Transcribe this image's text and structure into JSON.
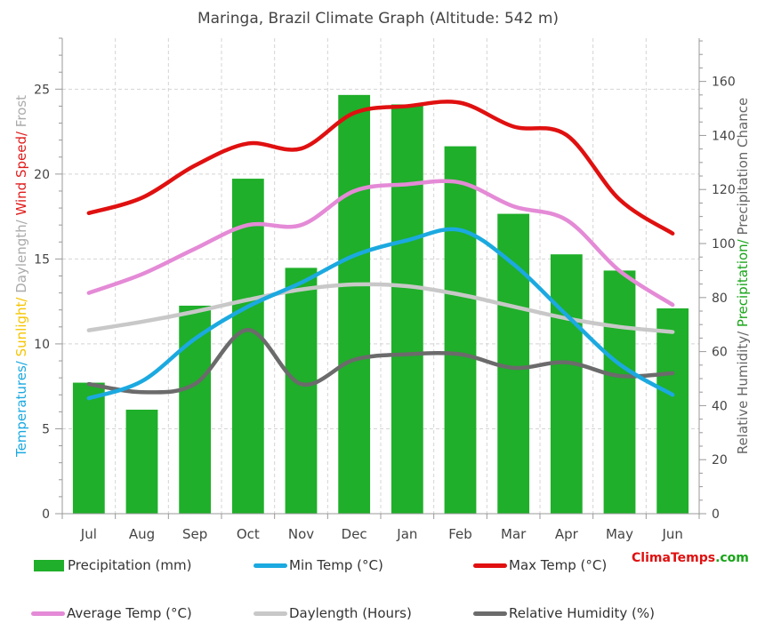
{
  "chart_data": {
    "type": "bar+line",
    "title": "Maringa, Brazil Climate Graph (Altitude: 542 m)",
    "categories": [
      "Jul",
      "Aug",
      "Sep",
      "Oct",
      "Nov",
      "Dec",
      "Jan",
      "Feb",
      "Mar",
      "Apr",
      "May",
      "Jun"
    ],
    "left_axis": {
      "ylim": [
        0,
        28
      ],
      "ticks": [
        0,
        5,
        10,
        15,
        20,
        25
      ],
      "label_parts": [
        {
          "text": "Temperatures/",
          "color": "#1ba9e0"
        },
        {
          "text": " Sunlight/",
          "color": "#f5c400"
        },
        {
          "text": " Daylength/",
          "color": "#aaaaaa"
        },
        {
          "text": " Wind Speed/",
          "color": "#e01b1b"
        },
        {
          "text": " Frost",
          "color": "#aaaaaa"
        }
      ]
    },
    "right_axis": {
      "ylim": [
        0,
        176
      ],
      "ticks": [
        0,
        20,
        40,
        60,
        80,
        100,
        120,
        140,
        160
      ],
      "label_parts": [
        {
          "text": "Relative Humidity/",
          "color": "#666666"
        },
        {
          "text": " Precipitation/",
          "color": "#1aa51a"
        },
        {
          "text": " Precipitation Chance",
          "color": "#666666"
        }
      ]
    },
    "series": [
      {
        "name": "Precipitation (mm)",
        "kind": "bar",
        "axis": "right",
        "color": "#1faf2a",
        "values": [
          48.5,
          38.5,
          77,
          124,
          91,
          155,
          151.5,
          136,
          111,
          96,
          90,
          76
        ]
      },
      {
        "name": "Min Temp (°C)",
        "kind": "line",
        "axis": "left",
        "color": "#1ba9e0",
        "values": [
          6.8,
          7.8,
          10.3,
          12.2,
          13.6,
          15.2,
          16.1,
          16.7,
          14.7,
          11.7,
          8.8,
          7.0
        ]
      },
      {
        "name": "Max Temp (°C)",
        "kind": "line",
        "axis": "left",
        "color": "#e01010",
        "values": [
          17.7,
          18.6,
          20.5,
          21.8,
          21.5,
          23.6,
          24.0,
          24.2,
          22.8,
          22.3,
          18.5,
          16.5
        ]
      },
      {
        "name": "Average Temp (°C)",
        "kind": "line",
        "axis": "left",
        "color": "#e48ad6",
        "values": [
          13.0,
          14.1,
          15.6,
          17.0,
          17.0,
          19.0,
          19.4,
          19.5,
          18.1,
          17.3,
          14.3,
          12.3
        ]
      },
      {
        "name": "Daylength (Hours)",
        "kind": "line",
        "axis": "left",
        "color": "#c8c8c8",
        "values": [
          10.8,
          11.3,
          11.9,
          12.6,
          13.2,
          13.5,
          13.4,
          12.9,
          12.2,
          11.5,
          11.0,
          10.7
        ]
      },
      {
        "name": "Relative Humidity (%)",
        "kind": "line",
        "axis": "right",
        "color": "#6b6b6b",
        "values": [
          48,
          45,
          48,
          68,
          48,
          57,
          59,
          59,
          54,
          56,
          51,
          52
        ]
      }
    ],
    "grid": true,
    "legend_position": "bottom"
  },
  "brand": {
    "part1": "Clima",
    "part2": "Temps",
    "part3": ".com",
    "color1": "#e01010",
    "color2": "#e01010",
    "color3": "#1aa51a"
  }
}
